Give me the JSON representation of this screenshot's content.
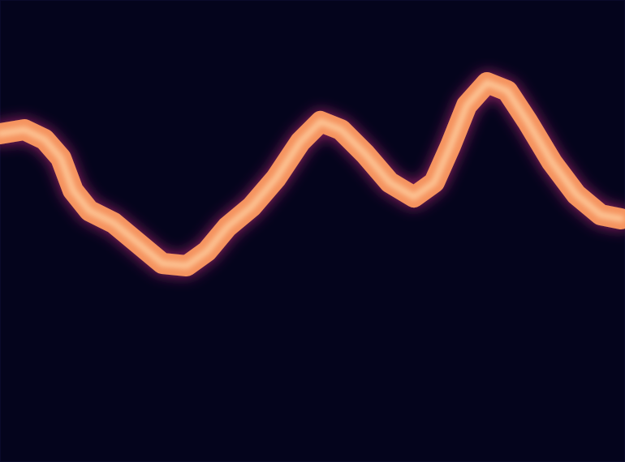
{
  "chart_data": {
    "type": "line",
    "x": [
      0,
      3,
      5.5,
      7.5,
      9,
      11,
      14,
      17,
      20,
      23,
      25.5,
      28,
      31,
      34,
      37,
      39.5,
      42,
      45,
      48,
      51,
      53.5,
      55.5,
      57.5,
      60,
      62.5,
      65,
      68,
      71,
      74,
      76.5
    ],
    "series": [
      {
        "color": "#f5935e",
        "values": [
          40.5,
          41,
          39.8,
          37.5,
          33.5,
          31,
          29.5,
          27,
          24.5,
          24.2,
          26,
          29,
          31.5,
          35,
          39.5,
          42,
          41,
          38,
          34.5,
          32.7,
          34.5,
          39,
          44,
          46.8,
          45.8,
          42,
          37,
          33,
          30.5,
          30
        ]
      }
    ],
    "xlim": [
      0,
      77
    ],
    "ylim": [
      0,
      57
    ],
    "tick_labels": false,
    "grid": false
  }
}
